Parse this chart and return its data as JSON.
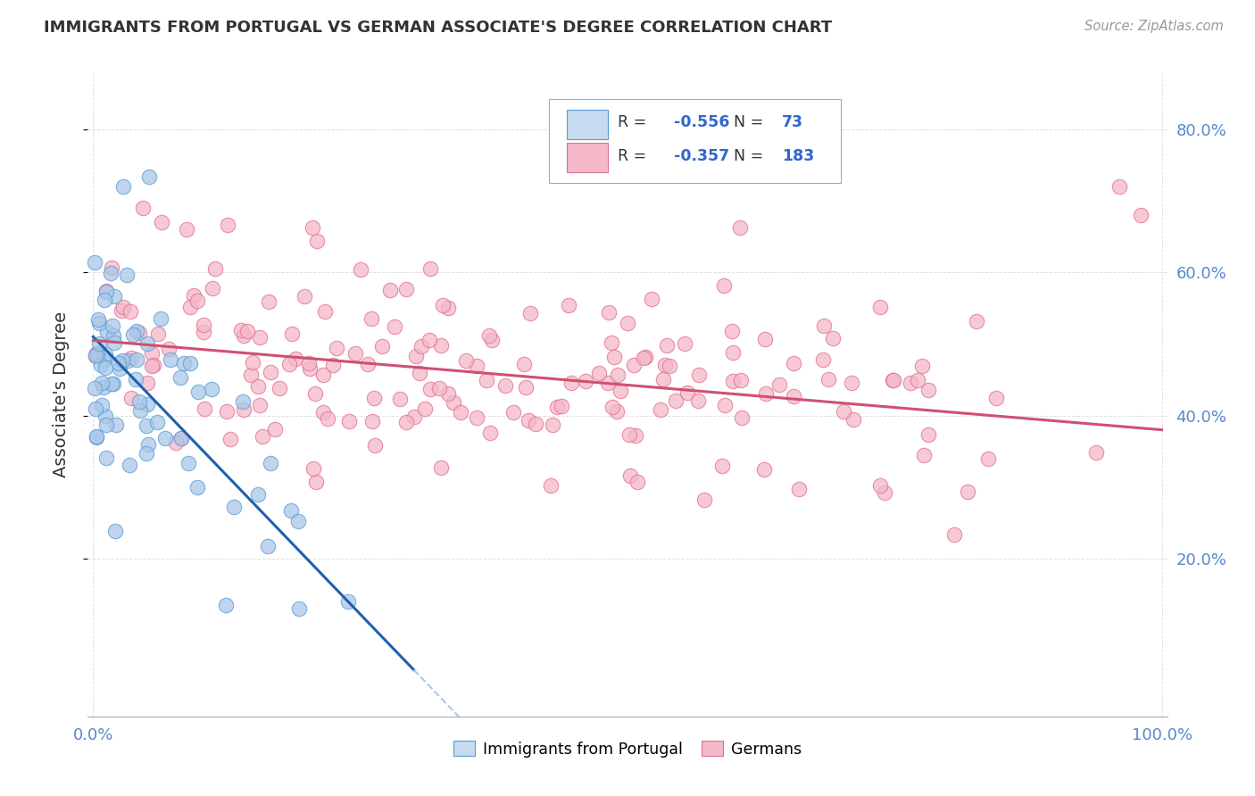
{
  "title": "IMMIGRANTS FROM PORTUGAL VS GERMAN ASSOCIATE'S DEGREE CORRELATION CHART",
  "source_text": "Source: ZipAtlas.com",
  "ylabel": "Associate's Degree",
  "blue_R": -0.556,
  "blue_N": 73,
  "pink_R": -0.357,
  "pink_N": 183,
  "blue_scatter_color": "#a8c8e8",
  "blue_scatter_edge": "#5b9bd5",
  "pink_scatter_color": "#f4b8c8",
  "pink_scatter_edge": "#e07090",
  "blue_line_color": "#2060b0",
  "pink_line_color": "#d05070",
  "dash_color": "#b0c8e0",
  "background": "#ffffff",
  "grid_color": "#cccccc",
  "title_color": "#333333",
  "tick_color": "#5588cc",
  "legend_text_color": "#333333",
  "legend_value_color": "#3366cc",
  "blue_fill_legend": "#c6dbef",
  "pink_fill_legend": "#f4b8c8",
  "xmin": -0.005,
  "xmax": 1.005,
  "ymin": -0.02,
  "ymax": 0.88,
  "ytick_positions": [
    0.2,
    0.4,
    0.6,
    0.8
  ],
  "ytick_labels": [
    "20.0%",
    "40.0%",
    "60.0%",
    "80.0%"
  ],
  "xtick_positions": [
    0.0,
    1.0
  ],
  "xtick_labels": [
    "0.0%",
    "100.0%"
  ],
  "blue_intercept": 0.51,
  "blue_slope": -1.55,
  "blue_line_xend": 0.3,
  "blue_dash_xend": 0.45,
  "pink_intercept": 0.505,
  "pink_slope": -0.125
}
